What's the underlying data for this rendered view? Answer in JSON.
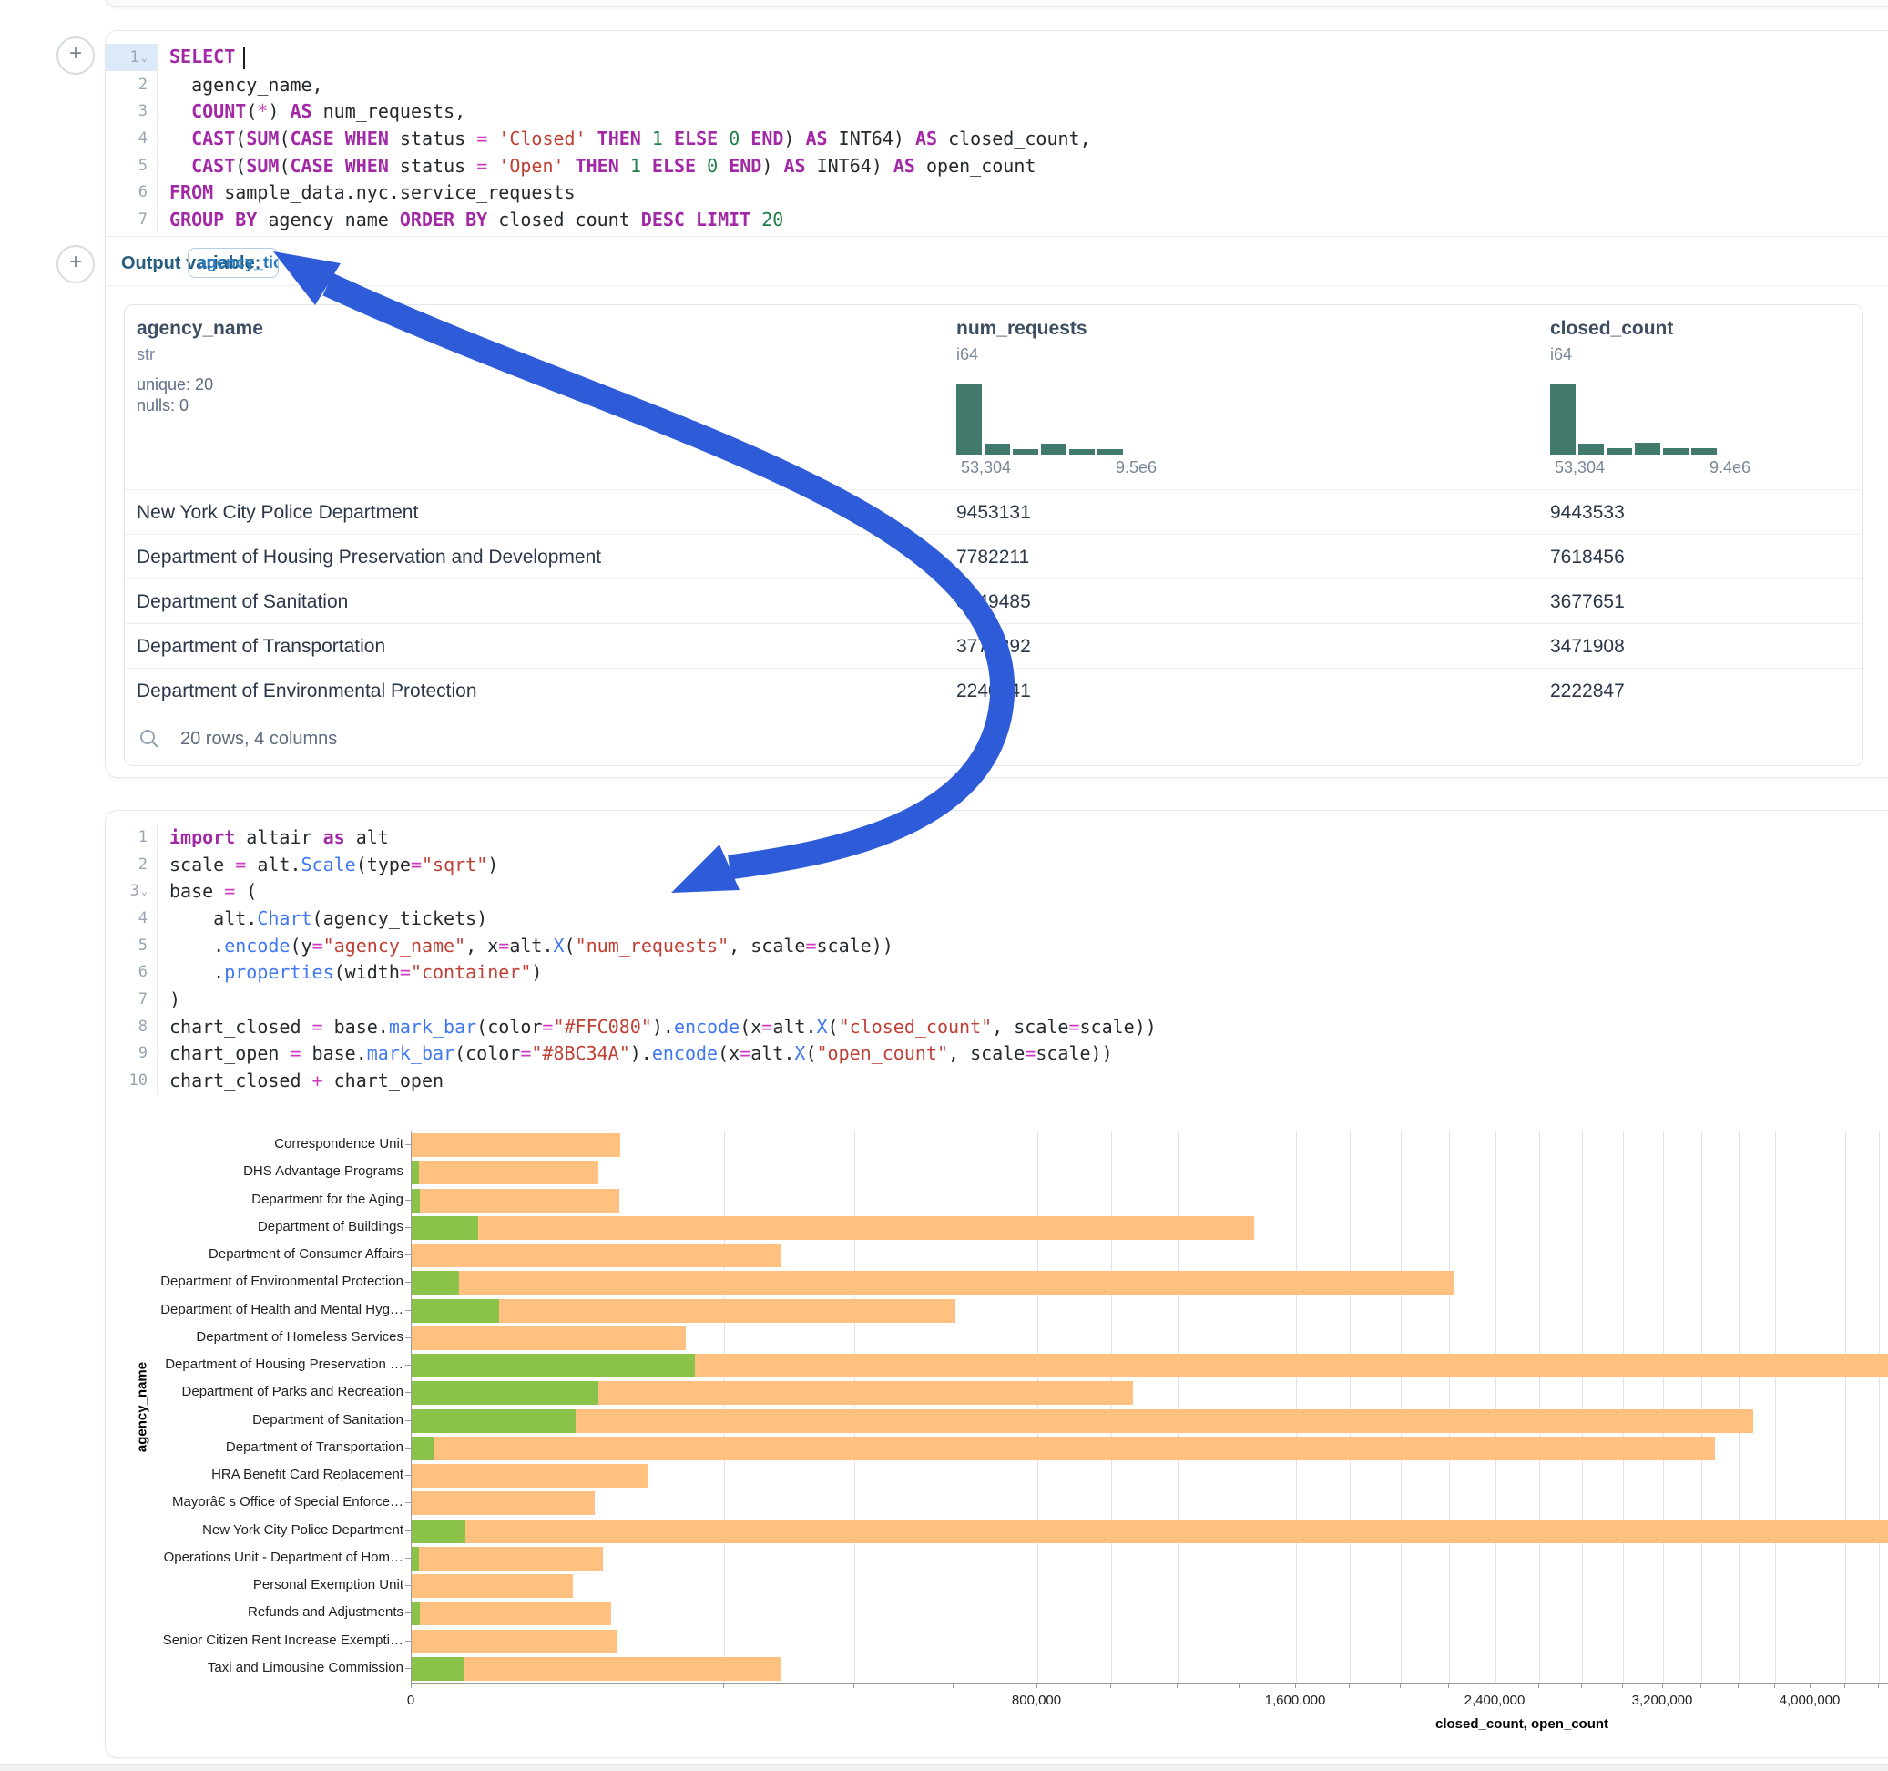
{
  "sql_cell": {
    "lines": [
      {
        "n": "1",
        "chevron": true,
        "active": true,
        "cursor": true,
        "tokens": [
          [
            "kw",
            "SELECT"
          ]
        ]
      },
      {
        "n": "2",
        "tokens": [
          [
            "pl",
            "  agency_name,"
          ]
        ]
      },
      {
        "n": "3",
        "tokens": [
          [
            "pl",
            "  "
          ],
          [
            "kw",
            "COUNT"
          ],
          [
            "pl",
            "("
          ],
          [
            "op",
            "*"
          ],
          [
            "pl",
            ") "
          ],
          [
            "kw",
            "AS"
          ],
          [
            "pl",
            " num_requests,"
          ]
        ]
      },
      {
        "n": "4",
        "tokens": [
          [
            "pl",
            "  "
          ],
          [
            "kw",
            "CAST"
          ],
          [
            "pl",
            "("
          ],
          [
            "kw",
            "SUM"
          ],
          [
            "pl",
            "("
          ],
          [
            "kw",
            "CASE"
          ],
          [
            "pl",
            " "
          ],
          [
            "kw",
            "WHEN"
          ],
          [
            "pl",
            " status "
          ],
          [
            "op",
            "="
          ],
          [
            "pl",
            " "
          ],
          [
            "str",
            "'Closed'"
          ],
          [
            "pl",
            " "
          ],
          [
            "kw",
            "THEN"
          ],
          [
            "pl",
            " "
          ],
          [
            "num",
            "1"
          ],
          [
            "pl",
            " "
          ],
          [
            "kw",
            "ELSE"
          ],
          [
            "pl",
            " "
          ],
          [
            "num",
            "0"
          ],
          [
            "pl",
            " "
          ],
          [
            "kw",
            "END"
          ],
          [
            "pl",
            ") "
          ],
          [
            "kw",
            "AS"
          ],
          [
            "pl",
            " INT64) "
          ],
          [
            "kw",
            "AS"
          ],
          [
            "pl",
            " closed_count,"
          ]
        ]
      },
      {
        "n": "5",
        "tokens": [
          [
            "pl",
            "  "
          ],
          [
            "kw",
            "CAST"
          ],
          [
            "pl",
            "("
          ],
          [
            "kw",
            "SUM"
          ],
          [
            "pl",
            "("
          ],
          [
            "kw",
            "CASE"
          ],
          [
            "pl",
            " "
          ],
          [
            "kw",
            "WHEN"
          ],
          [
            "pl",
            " status "
          ],
          [
            "op",
            "="
          ],
          [
            "pl",
            " "
          ],
          [
            "str",
            "'Open'"
          ],
          [
            "pl",
            " "
          ],
          [
            "kw",
            "THEN"
          ],
          [
            "pl",
            " "
          ],
          [
            "num",
            "1"
          ],
          [
            "pl",
            " "
          ],
          [
            "kw",
            "ELSE"
          ],
          [
            "pl",
            " "
          ],
          [
            "num",
            "0"
          ],
          [
            "pl",
            " "
          ],
          [
            "kw",
            "END"
          ],
          [
            "pl",
            ") "
          ],
          [
            "kw",
            "AS"
          ],
          [
            "pl",
            " INT64) "
          ],
          [
            "kw",
            "AS"
          ],
          [
            "pl",
            " open_count"
          ]
        ]
      },
      {
        "n": "6",
        "tokens": [
          [
            "kw",
            "FROM"
          ],
          [
            "pl",
            " sample_data.nyc.service_requests"
          ]
        ]
      },
      {
        "n": "7",
        "tokens": [
          [
            "kw",
            "GROUP BY"
          ],
          [
            "pl",
            " agency_name "
          ],
          [
            "kw",
            "ORDER BY"
          ],
          [
            "pl",
            " closed_count "
          ],
          [
            "kw",
            "DESC"
          ],
          [
            "pl",
            " "
          ],
          [
            "kw",
            "LIMIT"
          ],
          [
            "pl",
            " "
          ],
          [
            "num",
            "20"
          ]
        ]
      }
    ],
    "output_variable": {
      "label": "Output variable:",
      "value": "agency_tickets"
    }
  },
  "table": {
    "columns": [
      {
        "name": "agency_name",
        "type": "str",
        "meta": [
          "unique: 20",
          "nulls: 0"
        ]
      },
      {
        "name": "num_requests",
        "type": "i64",
        "hist": {
          "bars": [
            1,
            0.16,
            0.08,
            0.16,
            0.08,
            0.08
          ],
          "min": "53,304",
          "max": "9.5e6"
        }
      },
      {
        "name": "closed_count",
        "type": "i64",
        "hist": {
          "bars": [
            1,
            0.16,
            0.09,
            0.17,
            0.09,
            0.09
          ],
          "min": "53,304",
          "max": "9.4e6"
        }
      }
    ],
    "rows": [
      [
        "New York City Police Department",
        "9453131",
        "9443533"
      ],
      [
        "Department of Housing Preservation and Development",
        "7782211",
        "7618456"
      ],
      [
        "Department of Sanitation",
        "3749485",
        "3677651"
      ],
      [
        "Department of Transportation",
        "3774892",
        "3471908"
      ],
      [
        "Department of Environmental Protection",
        "2240041",
        "2222847"
      ]
    ],
    "footer": "20 rows, 4 columns"
  },
  "python_cell": {
    "lines": [
      {
        "n": "1",
        "tokens": [
          [
            "kw",
            "import"
          ],
          [
            "pl",
            " altair "
          ],
          [
            "kw",
            "as"
          ],
          [
            "pl",
            " alt"
          ]
        ]
      },
      {
        "n": "2",
        "tokens": [
          [
            "pl",
            "scale "
          ],
          [
            "op",
            "="
          ],
          [
            "pl",
            " alt."
          ],
          [
            "fn",
            "Scale"
          ],
          [
            "pl",
            "(type"
          ],
          [
            "op",
            "="
          ],
          [
            "str",
            "\"sqrt\""
          ],
          [
            "pl",
            ")"
          ]
        ]
      },
      {
        "n": "3",
        "chevron": true,
        "tokens": [
          [
            "pl",
            "base "
          ],
          [
            "op",
            "="
          ],
          [
            "pl",
            " ("
          ]
        ]
      },
      {
        "n": "4",
        "tokens": [
          [
            "pl",
            "    alt."
          ],
          [
            "fn",
            "Chart"
          ],
          [
            "pl",
            "(agency_tickets)"
          ]
        ]
      },
      {
        "n": "5",
        "tokens": [
          [
            "pl",
            "    ."
          ],
          [
            "fn",
            "encode"
          ],
          [
            "pl",
            "(y"
          ],
          [
            "op",
            "="
          ],
          [
            "str",
            "\"agency_name\""
          ],
          [
            "pl",
            ", x"
          ],
          [
            "op",
            "="
          ],
          [
            "pl",
            "alt."
          ],
          [
            "fn",
            "X"
          ],
          [
            "pl",
            "("
          ],
          [
            "str",
            "\"num_requests\""
          ],
          [
            "pl",
            ", scale"
          ],
          [
            "op",
            "="
          ],
          [
            "pl",
            "scale))"
          ]
        ]
      },
      {
        "n": "6",
        "tokens": [
          [
            "pl",
            "    ."
          ],
          [
            "fn",
            "properties"
          ],
          [
            "pl",
            "(width"
          ],
          [
            "op",
            "="
          ],
          [
            "str",
            "\"container\""
          ],
          [
            "pl",
            ")"
          ]
        ]
      },
      {
        "n": "7",
        "tokens": [
          [
            "pl",
            ")"
          ]
        ]
      },
      {
        "n": "8",
        "tokens": [
          [
            "pl",
            "chart_closed "
          ],
          [
            "op",
            "="
          ],
          [
            "pl",
            " base."
          ],
          [
            "fn",
            "mark_bar"
          ],
          [
            "pl",
            "(color"
          ],
          [
            "op",
            "="
          ],
          [
            "str",
            "\"#FFC080\""
          ],
          [
            "pl",
            ")."
          ],
          [
            "fn",
            "encode"
          ],
          [
            "pl",
            "(x"
          ],
          [
            "op",
            "="
          ],
          [
            "pl",
            "alt."
          ],
          [
            "fn",
            "X"
          ],
          [
            "pl",
            "("
          ],
          [
            "str",
            "\"closed_count\""
          ],
          [
            "pl",
            ", scale"
          ],
          [
            "op",
            "="
          ],
          [
            "pl",
            "scale))"
          ]
        ]
      },
      {
        "n": "9",
        "tokens": [
          [
            "pl",
            "chart_open "
          ],
          [
            "op",
            "="
          ],
          [
            "pl",
            " base."
          ],
          [
            "fn",
            "mark_bar"
          ],
          [
            "pl",
            "(color"
          ],
          [
            "op",
            "="
          ],
          [
            "str",
            "\"#8BC34A\""
          ],
          [
            "pl",
            ")."
          ],
          [
            "fn",
            "encode"
          ],
          [
            "pl",
            "(x"
          ],
          [
            "op",
            "="
          ],
          [
            "pl",
            "alt."
          ],
          [
            "fn",
            "X"
          ],
          [
            "pl",
            "("
          ],
          [
            "str",
            "\"open_count\""
          ],
          [
            "pl",
            ", scale"
          ],
          [
            "op",
            "="
          ],
          [
            "pl",
            "scale))"
          ]
        ]
      },
      {
        "n": "10",
        "tokens": [
          [
            "pl",
            "chart_closed "
          ],
          [
            "op",
            "+"
          ],
          [
            "pl",
            " chart_open"
          ]
        ]
      }
    ]
  },
  "chart_data": {
    "type": "bar",
    "orientation": "horizontal",
    "scale": "sqrt",
    "title": "",
    "xlabel": "closed_count, open_count",
    "ylabel": "agency_name",
    "grid": true,
    "x_major_ticks": {
      "values": [
        0,
        800000,
        1600000,
        2400000,
        3200000,
        4000000
      ],
      "labels": [
        "0",
        "800,000",
        "1,600,000",
        "2,400,000",
        "3,200,000",
        "4,000,000"
      ]
    },
    "x_minor_step": 200000,
    "xlim": [
      0,
      10000000
    ],
    "categories": [
      "Correspondence Unit",
      "DHS Advantage Programs",
      "Department for the Aging",
      "Department of Buildings",
      "Department of Consumer Affairs",
      "Department of Environmental Protection",
      "Department of Health and Mental Hyg…",
      "Department of Homeless Services",
      "Department of Housing Preservation …",
      "Department of Parks and Recreation",
      "Department of Sanitation",
      "Department of Transportation",
      "HRA Benefit Card Replacement",
      "Mayorâ€ s Office of Special Enforce…",
      "New York City Police Department",
      "Operations Unit - Department of Hom…",
      "Personal Exemption Unit",
      "Refunds and Adjustments",
      "Senior Citizen Rent Increase Exempti…",
      "Taxi and Limousine Commission"
    ],
    "series": [
      {
        "name": "closed_count",
        "color": "#FFC080",
        "values": [
          89000,
          71000,
          88000,
          1450000,
          278000,
          2222847,
          604000,
          154000,
          7618456,
          1063000,
          3677651,
          3471908,
          114000,
          68500,
          9443533,
          75000,
          53304,
          81300,
          86000,
          278000
        ]
      },
      {
        "name": "open_count",
        "color": "#8BC34A",
        "values": [
          0,
          100,
          150,
          9000,
          0,
          4600,
          15600,
          0,
          163755,
          71000,
          55000,
          1000,
          0,
          0,
          6000,
          100,
          0,
          150,
          0,
          5500
        ]
      }
    ]
  },
  "annotation": {
    "arrow_color": "#2E5BD8"
  }
}
